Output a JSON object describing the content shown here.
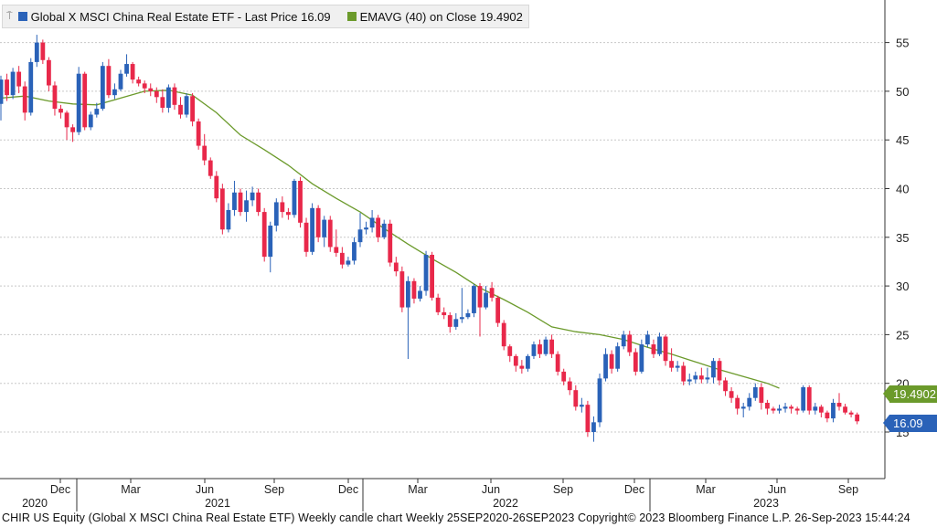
{
  "legend": {
    "price_label": "Global X MSCI China Real Estate ETF - Last Price 16.09",
    "ema_label": "EMAVG (40)  on Close 19.4902",
    "price_color": "#2a62b8",
    "ema_color": "#6b9a2b"
  },
  "footer": "CHIR US Equity (Global X MSCI China Real Estate ETF) Weekly candle chart  Weekly 25SEP2020-26SEP2023  Copyright© 2023 Bloomberg Finance L.P.  26-Sep-2023 15:44:24",
  "tags": {
    "ema": "19.4902",
    "last": "16.09"
  },
  "colors": {
    "up": "#2a62b8",
    "down": "#e8284a",
    "ema_line": "#6b9a2b",
    "grid": "#c8c8c8",
    "axis": "#333333"
  },
  "chart_data": {
    "type": "candlestick",
    "y_ticks": [
      "15",
      "20",
      "25",
      "30",
      "35",
      "40",
      "45",
      "50",
      "55"
    ],
    "ylim": [
      10,
      60
    ],
    "grid": true,
    "x_ticks_month": [
      "Dec",
      "Mar",
      "Jun",
      "Sep",
      "Dec",
      "Mar",
      "Jun",
      "Sep",
      "Dec",
      "Mar",
      "Jun",
      "Sep"
    ],
    "x_ticks_year": [
      "2020",
      "2021",
      "2022",
      "2023"
    ],
    "ema": [
      [
        0,
        49.3
      ],
      [
        4,
        49.5
      ],
      [
        8,
        49.0
      ],
      [
        12,
        48.7
      ],
      [
        16,
        48.6
      ],
      [
        20,
        49.3
      ],
      [
        24,
        50.0
      ],
      [
        28,
        50.1
      ],
      [
        32,
        49.6
      ],
      [
        36,
        47.8
      ],
      [
        40,
        45.5
      ],
      [
        44,
        44.0
      ],
      [
        48,
        42.4
      ],
      [
        52,
        40.5
      ],
      [
        56,
        39.0
      ],
      [
        60,
        37.6
      ],
      [
        64,
        35.9
      ],
      [
        68,
        34.3
      ],
      [
        72,
        32.8
      ],
      [
        76,
        31.4
      ],
      [
        80,
        29.8
      ],
      [
        84,
        28.6
      ],
      [
        88,
        27.3
      ],
      [
        92,
        25.8
      ],
      [
        96,
        25.3
      ],
      [
        100,
        25.0
      ],
      [
        104,
        24.5
      ],
      [
        108,
        23.7
      ],
      [
        112,
        23.0
      ],
      [
        116,
        22.2
      ],
      [
        120,
        21.4
      ],
      [
        124,
        20.7
      ],
      [
        128,
        20.0
      ],
      [
        130,
        19.5
      ]
    ],
    "candles": [
      [
        0,
        48.7,
        51.2,
        47.0,
        51.6
      ],
      [
        1,
        51.2,
        49.6,
        49.0,
        51.8
      ],
      [
        2,
        49.6,
        52.0,
        49.2,
        52.4
      ],
      [
        3,
        52.0,
        50.5,
        49.8,
        52.6
      ],
      [
        4,
        50.5,
        47.8,
        47.0,
        51.0
      ],
      [
        5,
        47.8,
        53.0,
        47.5,
        53.4
      ],
      [
        6,
        53.0,
        55.0,
        52.5,
        55.8
      ],
      [
        7,
        55.0,
        53.2,
        52.8,
        55.3
      ],
      [
        8,
        53.2,
        50.6,
        50.0,
        53.5
      ],
      [
        9,
        50.6,
        48.2,
        47.5,
        51.0
      ],
      [
        10,
        48.2,
        47.8,
        47.2,
        48.6
      ],
      [
        11,
        47.8,
        46.3,
        45.0,
        48.0
      ],
      [
        12,
        46.3,
        45.8,
        44.8,
        46.6
      ],
      [
        13,
        45.8,
        51.8,
        45.5,
        52.5
      ],
      [
        14,
        51.8,
        46.3,
        46.0,
        52.0
      ],
      [
        15,
        46.3,
        47.6,
        46.0,
        47.9
      ],
      [
        16,
        47.6,
        48.2,
        47.3,
        48.8
      ],
      [
        17,
        48.2,
        52.6,
        48.0,
        53.0
      ],
      [
        18,
        52.6,
        49.6,
        49.3,
        53.3
      ],
      [
        19,
        49.6,
        50.2,
        49.2,
        50.8
      ],
      [
        20,
        50.2,
        51.8,
        50.0,
        52.2
      ],
      [
        21,
        51.8,
        52.8,
        51.5,
        53.8
      ],
      [
        22,
        52.8,
        51.2,
        50.8,
        53.0
      ],
      [
        23,
        51.2,
        50.8,
        50.5,
        51.5
      ],
      [
        24,
        50.8,
        50.3,
        49.8,
        51.1
      ],
      [
        25,
        50.3,
        50.0,
        49.5,
        50.8
      ],
      [
        26,
        50.0,
        49.4,
        48.8,
        50.4
      ],
      [
        27,
        49.4,
        48.3,
        47.8,
        50.2
      ],
      [
        28,
        48.3,
        50.4,
        47.8,
        50.7
      ],
      [
        29,
        50.4,
        48.6,
        48.1,
        50.8
      ],
      [
        30,
        48.6,
        47.6,
        47.2,
        49.4
      ],
      [
        31,
        47.6,
        49.5,
        47.3,
        49.8
      ],
      [
        32,
        49.5,
        46.9,
        46.4,
        49.8
      ],
      [
        33,
        46.9,
        44.4,
        44.0,
        47.2
      ],
      [
        34,
        44.4,
        42.9,
        42.4,
        45.6
      ],
      [
        35,
        42.9,
        41.3,
        41.0,
        43.2
      ],
      [
        36,
        41.3,
        39.0,
        38.6,
        41.8
      ],
      [
        37,
        40.0,
        35.8,
        35.3,
        40.5
      ],
      [
        38,
        35.8,
        37.8,
        35.5,
        38.5
      ],
      [
        39,
        37.8,
        39.6,
        37.2,
        40.8
      ],
      [
        40,
        39.6,
        37.6,
        37.2,
        40.0
      ],
      [
        41,
        37.6,
        38.8,
        36.6,
        39.8
      ],
      [
        42,
        38.8,
        39.6,
        38.2,
        40.2
      ],
      [
        43,
        39.6,
        37.6,
        37.2,
        40.0
      ],
      [
        44,
        37.6,
        33.0,
        32.5,
        38.0
      ],
      [
        45,
        33.0,
        36.2,
        31.4,
        36.6
      ],
      [
        46,
        36.2,
        38.6,
        35.6,
        39.0
      ],
      [
        47,
        38.6,
        37.6,
        37.0,
        39.2
      ],
      [
        48,
        37.6,
        37.3,
        36.8,
        38.0
      ],
      [
        49,
        37.3,
        40.8,
        37.0,
        41.0
      ],
      [
        50,
        40.8,
        36.5,
        36.0,
        41.2
      ],
      [
        51,
        36.5,
        33.5,
        33.0,
        37.0
      ],
      [
        52,
        33.5,
        38.0,
        33.2,
        38.5
      ],
      [
        53,
        38.0,
        35.0,
        34.5,
        38.3
      ],
      [
        54,
        35.0,
        36.8,
        34.0,
        37.2
      ],
      [
        55,
        36.8,
        34.0,
        33.5,
        37.2
      ],
      [
        56,
        34.0,
        33.4,
        33.0,
        35.8
      ],
      [
        57,
        33.4,
        32.2,
        31.8,
        34.0
      ],
      [
        58,
        32.2,
        32.6,
        32.0,
        33.0
      ],
      [
        59,
        32.6,
        34.5,
        32.2,
        35.0
      ],
      [
        60,
        34.5,
        35.8,
        34.0,
        37.5
      ],
      [
        61,
        35.8,
        36.0,
        35.3,
        36.6
      ],
      [
        62,
        36.0,
        37.0,
        35.5,
        37.8
      ],
      [
        63,
        37.0,
        35.0,
        34.5,
        37.3
      ],
      [
        64,
        35.0,
        36.4,
        34.8,
        36.8
      ],
      [
        65,
        36.4,
        32.4,
        32.0,
        36.8
      ],
      [
        66,
        32.4,
        31.5,
        31.0,
        33.0
      ],
      [
        67,
        31.5,
        27.8,
        27.3,
        32.0
      ],
      [
        68,
        27.8,
        30.5,
        22.5,
        31.0
      ],
      [
        69,
        30.5,
        28.7,
        28.2,
        30.8
      ],
      [
        70,
        28.7,
        29.5,
        28.4,
        30.0
      ],
      [
        71,
        29.5,
        33.2,
        29.0,
        33.6
      ],
      [
        72,
        33.2,
        28.8,
        28.5,
        33.5
      ],
      [
        73,
        28.8,
        27.3,
        27.0,
        29.2
      ],
      [
        74,
        27.3,
        27.0,
        26.6,
        27.8
      ],
      [
        75,
        27.0,
        25.8,
        25.2,
        27.3
      ],
      [
        76,
        25.8,
        26.6,
        25.5,
        27.2
      ],
      [
        77,
        26.6,
        26.8,
        26.2,
        29.8
      ],
      [
        78,
        26.8,
        27.2,
        26.6,
        27.6
      ],
      [
        79,
        27.2,
        30.0,
        26.8,
        30.2
      ],
      [
        80,
        30.0,
        27.8,
        24.8,
        30.3
      ],
      [
        81,
        27.8,
        29.3,
        27.6,
        30.0
      ],
      [
        82,
        29.8,
        28.8,
        28.4,
        30.4
      ],
      [
        83,
        28.8,
        26.2,
        25.8,
        29.0
      ],
      [
        84,
        26.2,
        23.8,
        23.4,
        26.5
      ],
      [
        85,
        23.8,
        22.8,
        22.2,
        24.0
      ],
      [
        86,
        22.8,
        21.8,
        21.2,
        23.0
      ],
      [
        87,
        21.8,
        21.5,
        21.0,
        22.4
      ],
      [
        88,
        21.5,
        22.8,
        21.2,
        23.0
      ],
      [
        89,
        22.8,
        24.0,
        22.5,
        24.3
      ],
      [
        90,
        24.0,
        23.0,
        22.6,
        24.5
      ],
      [
        91,
        23.0,
        24.5,
        22.8,
        24.8
      ],
      [
        92,
        24.5,
        23.0,
        22.6,
        25.0
      ],
      [
        93,
        23.0,
        21.2,
        20.8,
        23.3
      ],
      [
        94,
        21.2,
        20.2,
        19.8,
        21.5
      ],
      [
        95,
        20.2,
        19.3,
        18.8,
        20.6
      ],
      [
        96,
        19.3,
        17.6,
        17.2,
        19.8
      ],
      [
        97,
        17.6,
        17.8,
        17.0,
        18.5
      ],
      [
        98,
        17.8,
        15.0,
        14.5,
        18.2
      ],
      [
        99,
        15.0,
        16.0,
        14.0,
        16.6
      ],
      [
        100,
        16.0,
        20.5,
        15.5,
        21.0
      ],
      [
        101,
        20.5,
        23.0,
        20.2,
        23.6
      ],
      [
        102,
        23.0,
        21.5,
        21.0,
        23.4
      ],
      [
        103,
        21.5,
        23.8,
        21.2,
        24.2
      ],
      [
        104,
        23.8,
        25.0,
        23.5,
        25.4
      ],
      [
        105,
        25.0,
        23.2,
        22.8,
        25.4
      ],
      [
        106,
        23.2,
        21.2,
        20.8,
        23.6
      ],
      [
        107,
        21.2,
        24.0,
        21.0,
        24.5
      ],
      [
        108,
        24.0,
        25.0,
        23.7,
        25.4
      ],
      [
        109,
        24.0,
        23.0,
        22.6,
        24.5
      ],
      [
        110,
        23.0,
        24.8,
        22.8,
        25.2
      ],
      [
        111,
        24.8,
        22.3,
        21.8,
        25.0
      ],
      [
        112,
        22.3,
        21.6,
        21.2,
        23.6
      ],
      [
        113,
        21.6,
        21.8,
        21.2,
        22.3
      ],
      [
        114,
        21.8,
        20.2,
        19.8,
        22.2
      ],
      [
        115,
        20.2,
        20.4,
        19.8,
        21.0
      ],
      [
        116,
        20.4,
        20.8,
        20.0,
        21.2
      ],
      [
        117,
        20.8,
        20.4,
        20.0,
        21.6
      ],
      [
        118,
        20.4,
        20.6,
        20.0,
        21.6
      ],
      [
        119,
        20.6,
        22.3,
        20.0,
        22.6
      ],
      [
        120,
        22.3,
        20.3,
        19.8,
        22.6
      ],
      [
        121,
        20.3,
        19.2,
        18.7,
        20.6
      ],
      [
        122,
        19.2,
        18.5,
        18.0,
        19.6
      ],
      [
        123,
        18.5,
        17.4,
        16.8,
        18.8
      ],
      [
        124,
        17.4,
        17.6,
        16.5,
        18.0
      ],
      [
        125,
        17.6,
        18.5,
        17.2,
        19.0
      ],
      [
        126,
        18.5,
        19.6,
        18.2,
        20.0
      ],
      [
        127,
        19.6,
        18.0,
        17.3,
        20.0
      ],
      [
        128,
        18.0,
        17.4,
        16.8,
        18.3
      ],
      [
        129,
        17.4,
        17.2,
        16.9,
        17.6
      ],
      [
        130,
        17.2,
        17.4,
        16.9,
        17.8
      ],
      [
        131,
        17.4,
        17.6,
        17.0,
        18.0
      ],
      [
        132,
        17.6,
        17.4,
        16.9,
        17.8
      ],
      [
        133,
        17.4,
        17.2,
        16.8,
        17.6
      ],
      [
        134,
        17.2,
        19.6,
        17.0,
        19.8
      ],
      [
        135,
        19.6,
        17.2,
        16.8,
        19.8
      ],
      [
        136,
        17.2,
        17.6,
        16.8,
        18.0
      ],
      [
        137,
        17.6,
        17.0,
        16.5,
        17.8
      ],
      [
        138,
        17.0,
        16.4,
        16.0,
        17.2
      ],
      [
        139,
        16.4,
        18.0,
        16.0,
        18.4
      ],
      [
        140,
        18.0,
        17.6,
        17.2,
        19.0
      ],
      [
        141,
        17.6,
        17.0,
        16.8,
        17.9
      ],
      [
        142,
        17.0,
        16.8,
        16.5,
        17.2
      ],
      [
        143,
        16.8,
        16.1,
        15.8,
        17.0
      ]
    ]
  }
}
